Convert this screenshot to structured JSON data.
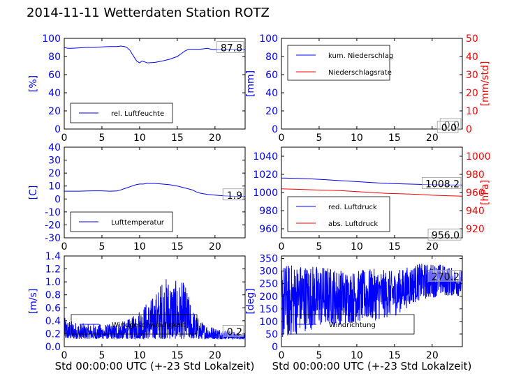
{
  "title": "2014-11-11 Wetterdaten Station ROTZ",
  "colors": {
    "blue": "#0000ff",
    "red": "#ff0000",
    "text": "#000000"
  },
  "chart_data": [
    {
      "id": "humidity",
      "type": "line",
      "xlim": [
        0,
        24
      ],
      "xticks": [
        0,
        5,
        10,
        15,
        20
      ],
      "ylim": [
        0,
        100
      ],
      "yticks": [
        0,
        20,
        40,
        60,
        80,
        100
      ],
      "ylabel": "[%]",
      "legend": "bottom-left",
      "current_value": "87.8",
      "series": [
        {
          "name": "rel. Luftfeuchte",
          "color": "#0000ff",
          "x": [
            0,
            0.5,
            1,
            2,
            3,
            4,
            5,
            6,
            7,
            7.5,
            8,
            8.3,
            8.7,
            9,
            9.3,
            9.6,
            9.8,
            10,
            10.3,
            10.7,
            11,
            12,
            13,
            14,
            15,
            15.5,
            16,
            16.5,
            17,
            18,
            19,
            19.5,
            20,
            21,
            22,
            23,
            24
          ],
          "y": [
            90,
            89,
            89,
            89.5,
            90,
            90,
            90.5,
            91,
            91,
            91.5,
            91,
            90,
            87,
            83,
            79,
            75,
            74,
            73,
            75,
            74,
            73,
            73.5,
            75,
            77,
            80,
            83,
            86,
            88,
            88,
            88,
            89,
            88,
            87.5,
            88,
            88,
            88,
            88
          ]
        }
      ]
    },
    {
      "id": "rain",
      "type": "line",
      "xlim": [
        0,
        24
      ],
      "xticks": [
        0,
        5,
        10,
        15,
        20
      ],
      "ylim": [
        0,
        100
      ],
      "yticks": [
        0,
        20,
        40,
        60,
        80,
        100
      ],
      "ylabel": "[mm]",
      "y2lim": [
        0,
        50
      ],
      "y2ticks": [
        0,
        10,
        20,
        30,
        40,
        50
      ],
      "y2label": "[mm/std]",
      "legend": "top-left",
      "current_values": [
        "0.0",
        "0.0"
      ],
      "series": [
        {
          "name": "kum. Niederschlag",
          "color": "#0000ff",
          "x": [
            0,
            24
          ],
          "y": [
            0,
            0
          ]
        },
        {
          "name": "Niederschlagsrate",
          "color": "#ff0000",
          "x": [
            0,
            24
          ],
          "y": [
            0,
            0
          ]
        }
      ]
    },
    {
      "id": "temperature",
      "type": "line",
      "xlim": [
        0,
        24
      ],
      "xticks": [
        0,
        5,
        10,
        15,
        20
      ],
      "ylim": [
        -30,
        40
      ],
      "yticks": [
        -30,
        -20,
        -10,
        0,
        10,
        20,
        30,
        40
      ],
      "ylabel": "[C]",
      "legend": "bottom-left",
      "current_value": "1.9",
      "series": [
        {
          "name": "Lufttemperatur",
          "color": "#0000ff",
          "x": [
            0,
            1,
            2,
            3,
            4,
            5,
            6,
            7,
            7.5,
            8,
            8.5,
            9,
            9.5,
            10,
            10.5,
            11,
            12,
            13,
            14,
            15,
            16,
            17,
            17.5,
            18,
            19,
            20,
            21,
            22,
            23,
            24
          ],
          "y": [
            6,
            6,
            6,
            6.2,
            6.3,
            6.3,
            6,
            6.2,
            7,
            8,
            9,
            10,
            11,
            11.5,
            11.5,
            12,
            12,
            11.5,
            11,
            10,
            8.5,
            7,
            5.5,
            4.5,
            3.5,
            3,
            2.5,
            2.2,
            2,
            1.9
          ]
        }
      ]
    },
    {
      "id": "pressure",
      "type": "line",
      "xlim": [
        0,
        24
      ],
      "xticks": [
        0,
        5,
        10,
        15,
        20
      ],
      "ylim": [
        950,
        1050
      ],
      "yticks": [
        960,
        980,
        1000,
        1020,
        1040
      ],
      "ylabel": "",
      "y2lim": [
        910,
        1010
      ],
      "y2ticks": [
        920,
        940,
        960,
        980,
        1000
      ],
      "y2label": "[hPa]",
      "legend": "bottom-left",
      "current_values": [
        "1008.2",
        "956.0"
      ],
      "series": [
        {
          "name": "red. Luftdruck",
          "color": "#0000ff",
          "x": [
            0,
            2,
            4,
            6,
            8,
            10,
            12,
            14,
            16,
            18,
            20,
            22,
            24
          ],
          "y": [
            1016,
            1015.5,
            1015,
            1014,
            1013,
            1012,
            1011,
            1010,
            1009.5,
            1009,
            1008.5,
            1008.3,
            1008.2
          ]
        },
        {
          "name": "abs. Luftdruck",
          "color": "#ff0000",
          "x": [
            0,
            2,
            4,
            6,
            8,
            10,
            12,
            14,
            16,
            18,
            20,
            22,
            24
          ],
          "y": [
            964,
            963.5,
            963,
            962.5,
            962,
            961,
            960,
            959,
            958.5,
            958,
            957,
            956.5,
            956
          ]
        }
      ]
    },
    {
      "id": "wind_speed",
      "type": "line",
      "xlim": [
        0,
        24
      ],
      "xticks": [
        0,
        5,
        10,
        15,
        20
      ],
      "ylim": [
        0,
        1.4
      ],
      "yticks": [
        0.0,
        0.2,
        0.4,
        0.6,
        0.8,
        1.0,
        1.2,
        1.4
      ],
      "ylabel": "[m/s]",
      "xlabel": "Std 00:00:00 UTC (+-23 Std Lokalzeit)",
      "legend": "bottom-left",
      "current_value": "0.2",
      "series": [
        {
          "name": "Windgeschwindigkeit",
          "color": "#0000ff",
          "envelope": [
            [
              0,
              0.45
            ],
            [
              1,
              0.4
            ],
            [
              3,
              0.35
            ],
            [
              6,
              0.35
            ],
            [
              8,
              0.4
            ],
            [
              9,
              0.45
            ],
            [
              10,
              0.6
            ],
            [
              11,
              0.7
            ],
            [
              12,
              0.8
            ],
            [
              13,
              1.05
            ],
            [
              14,
              1.1
            ],
            [
              15,
              1.0
            ],
            [
              16,
              1.0
            ],
            [
              17,
              0.6
            ],
            [
              18,
              0.4
            ],
            [
              20,
              0.3
            ],
            [
              22,
              0.25
            ],
            [
              24,
              0.2
            ]
          ]
        }
      ]
    },
    {
      "id": "wind_direction",
      "type": "line",
      "xlim": [
        0,
        24
      ],
      "xticks": [
        0,
        5,
        10,
        15,
        20
      ],
      "ylim": [
        0,
        360
      ],
      "yticks": [
        0,
        50,
        100,
        150,
        200,
        250,
        300,
        350
      ],
      "ylabel": "[deg]",
      "xlabel": "Std 00:00:00 UTC (+-23 Std Lokalzeit)",
      "legend": "bottom-left",
      "current_value": "270.2",
      "series": [
        {
          "name": "Windrichtung",
          "color": "#0000ff",
          "envelope": [
            [
              0,
              [
                20,
                330
              ]
            ],
            [
              3,
              [
                60,
                330
              ]
            ],
            [
              6,
              [
                80,
                320
              ]
            ],
            [
              9,
              [
                90,
                300
              ]
            ],
            [
              12,
              [
                100,
                310
              ]
            ],
            [
              15,
              [
                120,
                300
              ]
            ],
            [
              18,
              [
                180,
                330
              ]
            ],
            [
              21,
              [
                200,
                330
              ]
            ],
            [
              24,
              [
                200,
                300
              ]
            ]
          ]
        }
      ]
    }
  ]
}
